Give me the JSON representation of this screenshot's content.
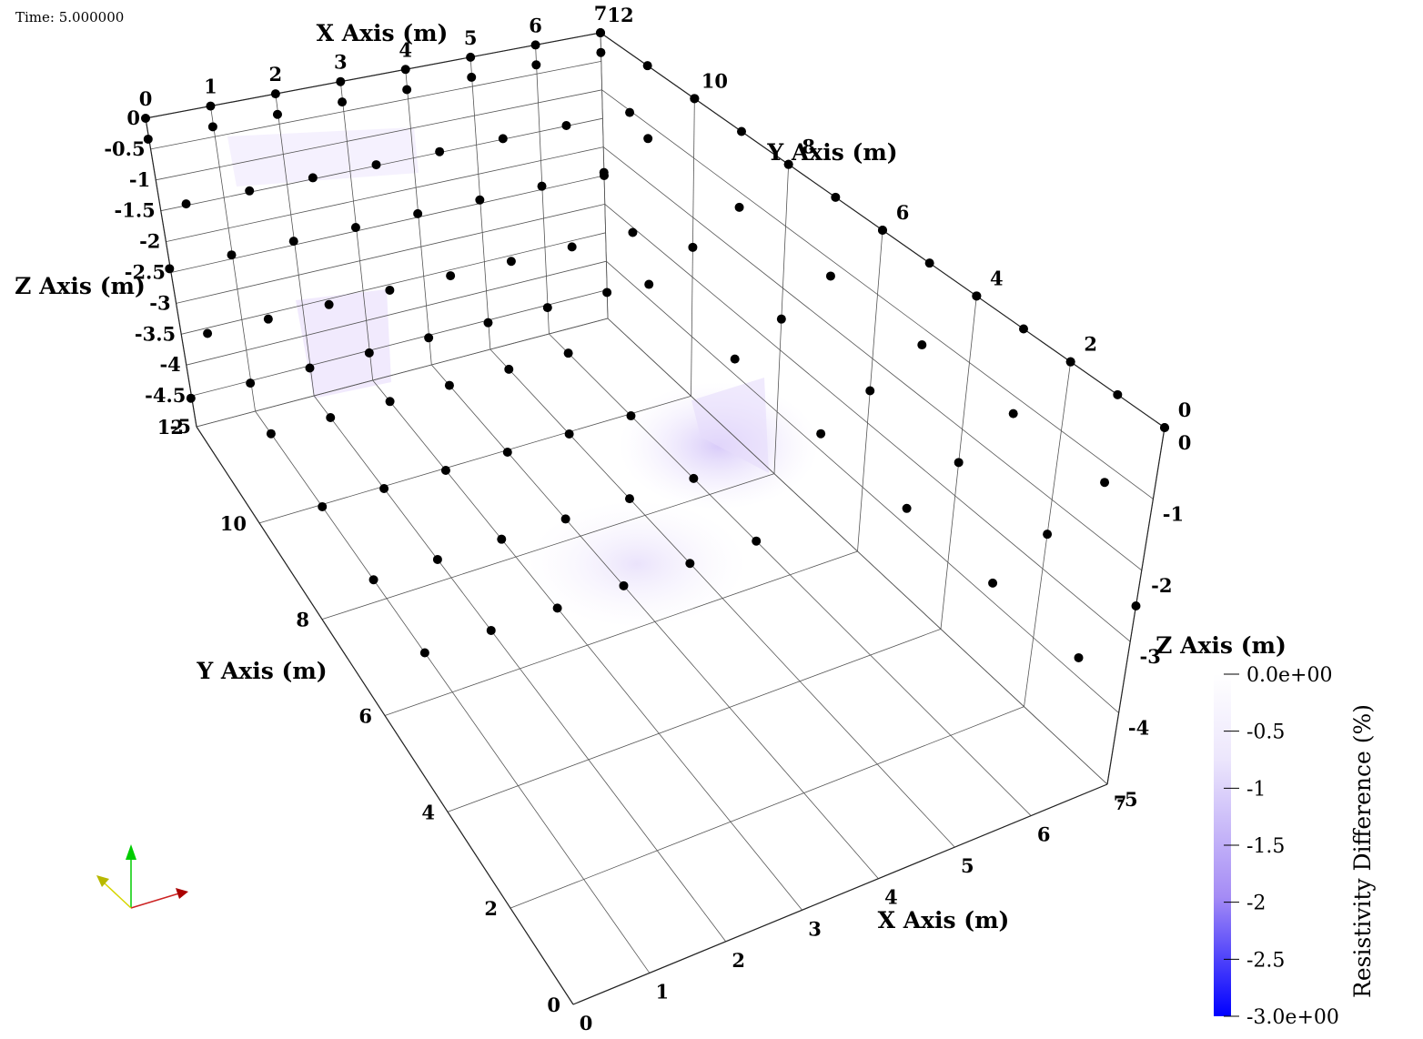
{
  "viewport": {
    "time_label": "Time: 5.000000"
  },
  "axes": {
    "x_title": "X Axis (m)",
    "y_title": "Y Axis (m)",
    "z_title": "Z Axis (m)",
    "x_range": [
      0,
      7
    ],
    "y_range": [
      0,
      12
    ],
    "z_range": [
      -5,
      0
    ],
    "x_ticks_back": [
      "0",
      "1",
      "2",
      "3",
      "4",
      "5",
      "6",
      "7"
    ],
    "x_ticks_front": [
      "0",
      "1",
      "2",
      "3",
      "4",
      "5",
      "6",
      "7"
    ],
    "y_ticks_left": [
      "12",
      "10",
      "8",
      "6",
      "4",
      "2",
      "0"
    ],
    "y_ticks_right": [
      "12",
      "10",
      "8",
      "6",
      "4",
      "2",
      "0"
    ],
    "z_ticks_left": [
      "0",
      "-0.5",
      "-1",
      "-1.5",
      "-2",
      "-2.5",
      "-3",
      "-3.5",
      "-4",
      "-4.5",
      "-5"
    ],
    "z_ticks_right": [
      "0",
      "-1",
      "-2",
      "-3",
      "-4",
      "-5"
    ],
    "grid": true
  },
  "electrodes": {
    "color": "#000000",
    "description_rows": "black point markers on the side, back and floor faces"
  },
  "colorbar": {
    "title": "Resistivity Difference (%)",
    "ticks": [
      "0.0e+00",
      "-0.5",
      "-1",
      "-1.5",
      "-2",
      "-2.5",
      "-3.0e+00"
    ],
    "range": [
      -3,
      0
    ],
    "color_min": "#0000ff",
    "color_max": "#ffffff"
  },
  "orientation_widget": {
    "x_color": "#cc0000",
    "y_color": "#cccc00",
    "z_color": "#00cc00"
  }
}
